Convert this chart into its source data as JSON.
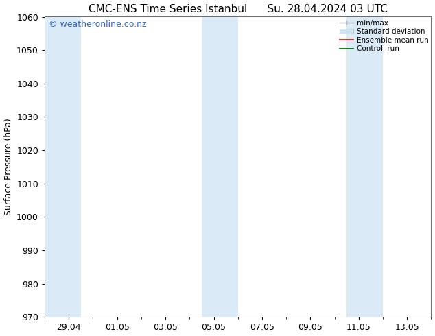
{
  "title_left": "CMC-ENS Time Series Istanbul",
  "title_right": "Su. 28.04.2024 03 UTC",
  "ylabel": "Surface Pressure (hPa)",
  "ylim": [
    970,
    1060
  ],
  "yticks": [
    970,
    980,
    990,
    1000,
    1010,
    1020,
    1030,
    1040,
    1050,
    1060
  ],
  "xtick_labels": [
    "29.04",
    "01.05",
    "03.05",
    "05.05",
    "07.05",
    "09.05",
    "11.05",
    "13.05"
  ],
  "xtick_positions": [
    1,
    3,
    5,
    7,
    9,
    11,
    13,
    15
  ],
  "xlim": [
    0,
    16
  ],
  "shaded_bands": [
    {
      "x_start": 0,
      "x_end": 1.5,
      "color": "#daeaf7"
    },
    {
      "x_start": 6.5,
      "x_end": 8.0,
      "color": "#daeaf7"
    },
    {
      "x_start": 12.5,
      "x_end": 14.0,
      "color": "#daeaf7"
    }
  ],
  "watermark": "© weatheronline.co.nz",
  "watermark_color": "#3366cc",
  "background_color": "#ffffff",
  "plot_bg_color": "#ffffff",
  "legend_entries": [
    "min/max",
    "Standard deviation",
    "Ensemble mean run",
    "Controll run"
  ],
  "title_fontsize": 11,
  "label_fontsize": 9,
  "tick_fontsize": 9,
  "watermark_fontsize": 9
}
